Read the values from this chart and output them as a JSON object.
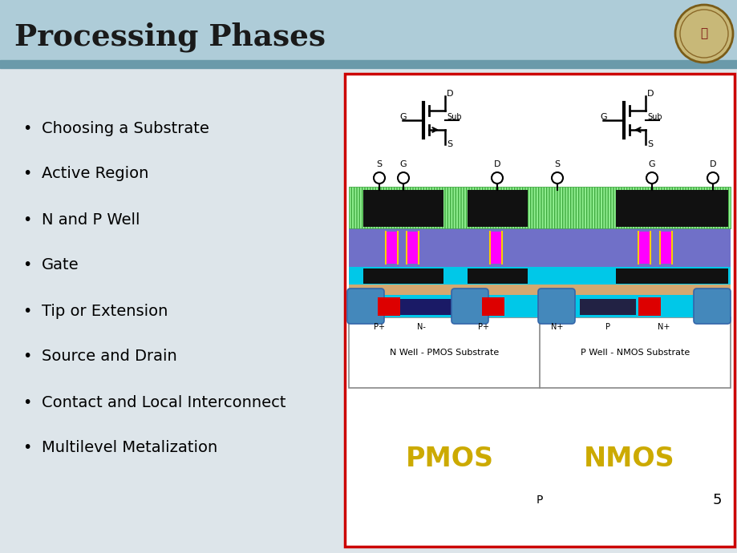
{
  "title": "Processing Phases",
  "title_color": "#1a1a1a",
  "header_bg": "#aeccd8",
  "header_bar_color": "#6a9aaa",
  "body_bg": "#dde8ee",
  "bullet_items": [
    "Choosing a Substrate",
    "Active Region",
    "N and P Well",
    "Gate",
    "Tip or Extension",
    "Source and Drain",
    "Contact and Local Interconnect",
    "Multilevel Metalization"
  ],
  "pmos_label": "PMOS",
  "nmos_label": "NMOS",
  "p_substrate_label": "P",
  "page_num": "5",
  "n_well_label": "N Well - PMOS Substrate",
  "p_well_label": "P Well - NMOS Substrate",
  "diagram_border": "#cc0000",
  "green_layer": "#90ee90",
  "purple_layer": "#7070c8",
  "cyan_layer": "#00c8e8",
  "orange_layer": "#d4a870",
  "blue_contact": "#4488bb",
  "magenta_via": "#ff00ff",
  "red_implant": "#dd0000",
  "black_gate": "#111111",
  "gold_label": "#ccaa00"
}
